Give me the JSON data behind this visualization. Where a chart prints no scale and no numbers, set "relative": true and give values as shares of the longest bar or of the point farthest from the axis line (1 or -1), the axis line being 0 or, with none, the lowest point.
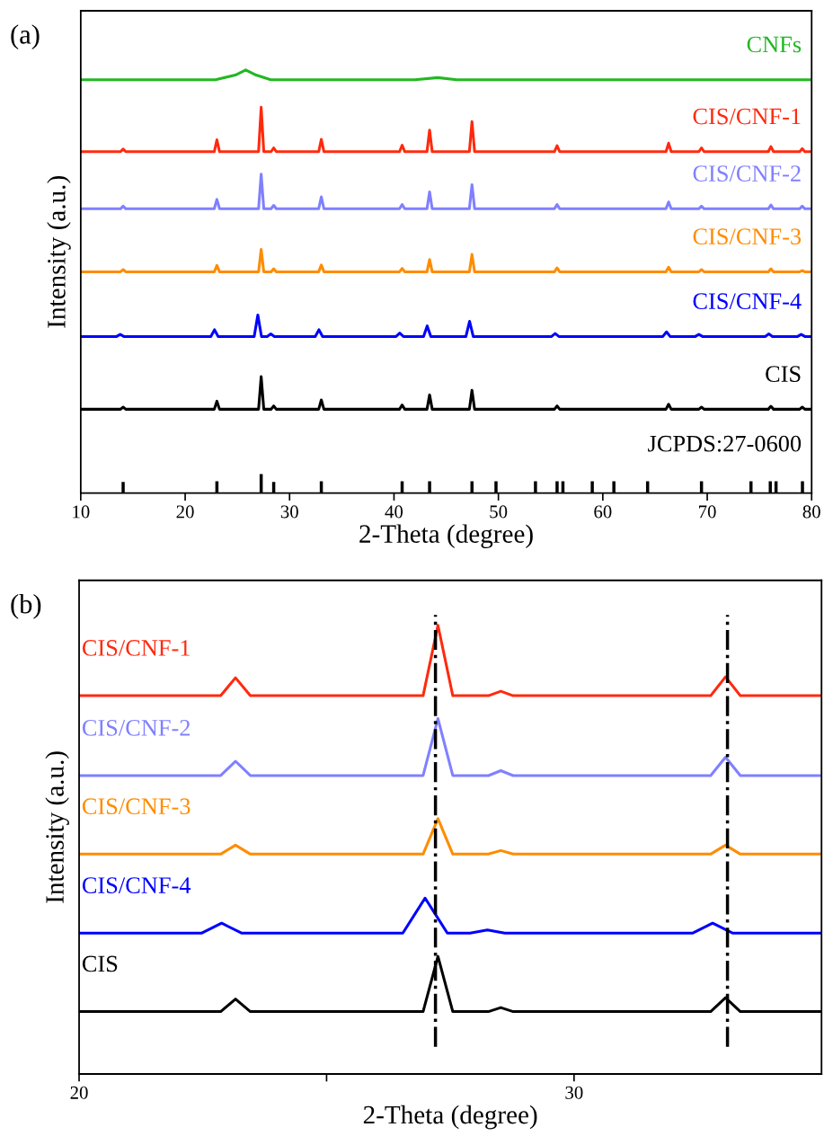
{
  "chart_data": [
    {
      "type": "line",
      "xlabel": "2-Theta (degree)",
      "ylabel": "Intensity (a.u.)",
      "relative": true,
      "tick_labels": "x",
      "legend": false,
      "grid": false,
      "xlim": [
        10,
        80
      ],
      "xticks": [
        10,
        20,
        30,
        40,
        50,
        60,
        70,
        80
      ],
      "annotations": [
        "(a)"
      ],
      "x": [
        10,
        13.81,
        14.06,
        14.31,
        22.79,
        23.04,
        23.29,
        27.03,
        27.28,
        27.53,
        28.23,
        28.48,
        28.73,
        32.79,
        33.04,
        33.29,
        40.53,
        40.78,
        41.03,
        43.16,
        43.41,
        43.66,
        47.22,
        47.47,
        47.72,
        55.37,
        55.62,
        55.87,
        66.05,
        66.3,
        66.55,
        69.2,
        69.45,
        69.7,
        75.85,
        76.1,
        76.35,
        78.85,
        79.1,
        79.35,
        80
      ],
      "series": [
        {
          "name": "CNFs",
          "color": "#22b822",
          "x": [
            10,
            22.9,
            24.8,
            25.8,
            26.8,
            28.2,
            42,
            44.2,
            46,
            80
          ],
          "values": [
            0.977,
            0.977,
            0.988,
            1.0,
            0.988,
            0.977,
            0.977,
            0.982,
            0.977,
            0.977
          ]
        },
        {
          "name": "CIS/CNF-1",
          "color": "#ff2a0e",
          "values": [
            0.807,
            0.807,
            0.813,
            0.807,
            0.807,
            0.835,
            0.807,
            0.807,
            0.912,
            0.807,
            0.807,
            0.816,
            0.807,
            0.807,
            0.836,
            0.807,
            0.807,
            0.822,
            0.807,
            0.807,
            0.858,
            0.807,
            0.807,
            0.878,
            0.807,
            0.807,
            0.821,
            0.807,
            0.807,
            0.827,
            0.807,
            0.807,
            0.816,
            0.807,
            0.807,
            0.819,
            0.807,
            0.807,
            0.814,
            0.807,
            0.807
          ]
        },
        {
          "name": "CIS/CNF-2",
          "color": "#8080ff",
          "values": [
            0.672,
            0.672,
            0.678,
            0.672,
            0.672,
            0.694,
            0.672,
            0.672,
            0.754,
            0.672,
            0.672,
            0.68,
            0.672,
            0.672,
            0.7,
            0.672,
            0.672,
            0.682,
            0.672,
            0.672,
            0.712,
            0.672,
            0.672,
            0.729,
            0.672,
            0.672,
            0.682,
            0.672,
            0.672,
            0.688,
            0.672,
            0.672,
            0.678,
            0.672,
            0.672,
            0.681,
            0.672,
            0.672,
            0.678,
            0.672,
            0.672
          ]
        },
        {
          "name": "CIS/CNF-3",
          "color": "#ff8c00",
          "values": [
            0.523,
            0.523,
            0.528,
            0.523,
            0.523,
            0.538,
            0.523,
            0.523,
            0.576,
            0.523,
            0.523,
            0.53,
            0.523,
            0.523,
            0.539,
            0.523,
            0.523,
            0.531,
            0.523,
            0.523,
            0.552,
            0.523,
            0.523,
            0.564,
            0.523,
            0.523,
            0.532,
            0.523,
            0.523,
            0.534,
            0.523,
            0.523,
            0.528,
            0.523,
            0.523,
            0.53,
            0.523,
            0.523,
            0.526,
            0.523,
            0.523
          ]
        },
        {
          "name": "CIS/CNF-4",
          "color": "#0000ff",
          "x": [
            10,
            13.43,
            13.78,
            14.13,
            22.46,
            22.81,
            23.16,
            26.61,
            26.96,
            27.31,
            27.85,
            28.2,
            28.55,
            32.46,
            32.81,
            33.16,
            40.2,
            40.55,
            40.9,
            42.83,
            43.18,
            43.53,
            46.89,
            47.24,
            47.59,
            55.09,
            55.44,
            55.79,
            65.75,
            66.1,
            66.45,
            68.85,
            69.2,
            69.55,
            75.55,
            75.9,
            76.25,
            78.65,
            79.0,
            79.35,
            80
          ],
          "values": [
            0.37,
            0.37,
            0.375,
            0.37,
            0.37,
            0.386,
            0.37,
            0.37,
            0.421,
            0.37,
            0.37,
            0.376,
            0.37,
            0.37,
            0.386,
            0.37,
            0.37,
            0.378,
            0.37,
            0.37,
            0.395,
            0.37,
            0.37,
            0.406,
            0.37,
            0.37,
            0.377,
            0.37,
            0.37,
            0.381,
            0.37,
            0.37,
            0.375,
            0.37,
            0.37,
            0.376,
            0.37,
            0.37,
            0.375,
            0.37,
            0.37
          ]
        },
        {
          "name": "CIS",
          "color": "#000000",
          "values": [
            0.198,
            0.198,
            0.203,
            0.198,
            0.198,
            0.217,
            0.198,
            0.198,
            0.275,
            0.198,
            0.198,
            0.206,
            0.198,
            0.198,
            0.22,
            0.198,
            0.198,
            0.208,
            0.198,
            0.198,
            0.232,
            0.198,
            0.198,
            0.243,
            0.198,
            0.198,
            0.206,
            0.198,
            0.198,
            0.21,
            0.198,
            0.198,
            0.203,
            0.198,
            0.198,
            0.205,
            0.198,
            0.198,
            0.203,
            0.198,
            0.198
          ]
        },
        {
          "name": "JCPDS:27-0600",
          "type": "bar",
          "color": "#000000",
          "x": [
            14.06,
            23.04,
            27.28,
            28.48,
            33.04,
            40.78,
            43.41,
            47.47,
            49.77,
            53.55,
            55.62,
            56.18,
            58.99,
            61.06,
            64.29,
            69.45,
            74.19,
            76.04,
            76.59,
            79.12
          ],
          "values": [
            0.026,
            0.028,
            0.045,
            0.026,
            0.028,
            0.028,
            0.028,
            0.028,
            0.028,
            0.028,
            0.028,
            0.028,
            0.028,
            0.028,
            0.028,
            0.028,
            0.028,
            0.028,
            0.028,
            0.028
          ]
        }
      ]
    },
    {
      "type": "line",
      "xlabel": "2-Theta (degree)",
      "ylabel": "Intensity (a.u.)",
      "relative": true,
      "tick_labels": "x",
      "legend": false,
      "grid": false,
      "xlim": [
        20,
        35
      ],
      "xticks": [
        20,
        {
          "value": 25,
          "label": null
        },
        30
      ],
      "annotations": [
        "(b)"
      ],
      "ref_lines": [
        {
          "axis": "x",
          "value": 27.2,
          "color": "#000000",
          "line_style": "dashdot"
        },
        {
          "axis": "x",
          "value": 33.1,
          "color": "#000000",
          "line_style": "dashdot"
        }
      ],
      "x": [
        20,
        22.86,
        23.16,
        23.46,
        26.95,
        27.25,
        27.55,
        28.27,
        28.52,
        28.77,
        32.76,
        33.06,
        33.36,
        35
      ],
      "series": [
        {
          "name": "CIS/CNF-1",
          "color": "#ff2a0e",
          "values": [
            0.843,
            0.843,
            0.883,
            0.843,
            0.843,
            1.0,
            0.843,
            0.843,
            0.853,
            0.843,
            0.843,
            0.885,
            0.843,
            0.843
          ]
        },
        {
          "name": "CIS/CNF-2",
          "color": "#8080ff",
          "values": [
            0.665,
            0.665,
            0.697,
            0.665,
            0.665,
            0.792,
            0.665,
            0.665,
            0.676,
            0.665,
            0.665,
            0.706,
            0.665,
            0.665
          ]
        },
        {
          "name": "CIS/CNF-3",
          "color": "#ff8c00",
          "values": [
            0.49,
            0.49,
            0.51,
            0.49,
            0.49,
            0.569,
            0.49,
            0.49,
            0.498,
            0.49,
            0.49,
            0.51,
            0.49,
            0.49
          ]
        },
        {
          "name": "CIS/CNF-4",
          "color": "#0000ff",
          "x": [
            20,
            22.48,
            22.88,
            23.28,
            26.54,
            26.99,
            27.44,
            27.9,
            28.25,
            28.6,
            32.4,
            32.8,
            33.2,
            35
          ],
          "values": [
            0.314,
            0.314,
            0.336,
            0.314,
            0.314,
            0.392,
            0.314,
            0.314,
            0.321,
            0.314,
            0.314,
            0.336,
            0.314,
            0.314
          ]
        },
        {
          "name": "CIS",
          "color": "#000000",
          "values": [
            0.139,
            0.139,
            0.167,
            0.139,
            0.139,
            0.262,
            0.139,
            0.139,
            0.148,
            0.139,
            0.139,
            0.17,
            0.139,
            0.139
          ]
        }
      ]
    }
  ]
}
